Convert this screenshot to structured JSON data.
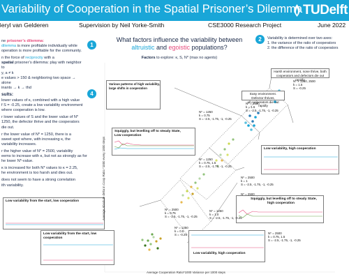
{
  "header": {
    "title": "Variability of Cooperation in the Spatial Prisoner’s Dilemma",
    "logo_text": "TUDelft"
  },
  "authors": {
    "author": "Beryl van Gelderen",
    "supervision": "Supervision by Neil Yorke-Smith",
    "project": "CSE3000 Research Project",
    "date": "June 2022"
  },
  "sections": {
    "s1_num": "1",
    "s2_num": "2",
    "s4_num": "4",
    "intro_l1_a": "ne",
    "intro_l1_b": "prisoner’s dilemma:",
    "intro_l2_a": "dilemma",
    "intro_l2_b": "is more profitable individually while",
    "intro_l3": "operation is more profitable for the community.",
    "intro_l4_a": "n the force of",
    "intro_l4_b": "reciprocity",
    "intro_l4_c": "with a",
    "intro_l5_a": "spatial",
    "intro_l5_b": "prisoner’s dilemma: play with neighbor to",
    "intro_l6_a": "y, a",
    "intro_l6_b": "≠ k",
    "intro_l7": "e values > 150 & neighboring two space → alone",
    "intro_l8": "inants → k → thd",
    "results_title": "sults:",
    "r1": "lower values of κ, combined with a high value",
    "r2": "f S = -0.25, create a low variability environment",
    "r3": "where cooperation is low.",
    "r4": "r lower values of S and the lower value of N*",
    "r5": "1250, the defector thrive and the cooperators",
    "r6": "die out.",
    "r7": "r the lower value of N* = 1250, there is a",
    "r8": "sweet spot where, with increasing κ, the",
    "r9": "variability increases.",
    "r10": "r the higher value of N* = 2500, variability",
    "r11": "eems to increase with κ, but not as strongly as for",
    "r12": "he lower N*-value.",
    "r13": "κ is increased for both N* values to κ = 2.25,",
    "r14": "he environment is too harsh and dies out.",
    "r15": "does not seem to have a strong correlation",
    "r16": "ith variability."
  },
  "question": {
    "line1": "What factors influence the variability between",
    "alt": "altruistic",
    "and": "and",
    "ego": "egoistic",
    "tail": "populations?",
    "factors_label": "Factors",
    "factors_text": "to explore: κ, S, N* (max no agents)"
  },
  "right_box": {
    "l1": "Variability is determined over two axes:",
    "l2": "1. the variance of the ratio of cooperators",
    "l3": "2. the difference of the ratio of cooperators"
  },
  "callouts": {
    "c1_title": "Various patterns of high variability,",
    "c1_sub": "large shifts in cooperation",
    "c2_l1": "Harsh environment, none thrive, both",
    "c2_l2": "cooperators and defectors die out rapidly",
    "c3_l1": "Easy environment. Defector thrives,",
    "c3_l2": "all cooperators die out rapidly",
    "c4_l1": "Squiggly, but levelling off to steady State,",
    "c4_l2": "Low cooperation",
    "c5": "Low variability, high cooperation",
    "c6": "Low variability from the start, low cooperation",
    "c7_l1": "Low variability from the start, low",
    "c7_l2": "cooperation",
    "c8_l1": "Squiggly, but levelling off to steady State,",
    "c8_l2": "high cooperation",
    "c9": "Low variability, high cooperation"
  },
  "params": {
    "p1": [
      "N* = 1250, 2500",
      "k = 1.5",
      "S = -0.25"
    ],
    "p2": [
      "N* = 2500",
      "k = 1.5",
      "S = -2.5, -1.75, -1, -0.25"
    ],
    "p3": [
      "N* = 1250",
      "k = 0.75",
      "S = -2.5, -1.75, -1, -0.25"
    ],
    "p4": [
      "N* = 1250",
      "k = 0.75, 1.5",
      "S = -2.5, -1.75, -1, -0.25"
    ],
    "p5": [
      "N* = 2500",
      "k = 1",
      "S = -2.5, -1.75, -1, -0.25"
    ],
    "p6": [
      "N* = 2500",
      "k = 1.25",
      "S = -2.5, -1.75, -1, -0.25"
    ],
    "p7": [
      "N* = 2500",
      "k = 0.75",
      "S = -2.5, -1.75, -1, -0.25"
    ],
    "p8": [
      "N* = 1250",
      "k = 0.5",
      "S = -0.25"
    ],
    "p9": [
      "N* = 2500",
      "k = 0.75, 1.5",
      "S = -2.5, -1.75, -1, -0.25"
    ],
    "p10": [
      "N* = 1250",
      "k = 1.0",
      "S = -2.5, -1.75, -1, -0.25"
    ]
  },
  "axes": {
    "x_label": "Average Cooperation Ratio*1000 Variance per 1000 steps",
    "y_label": "Average Absolute delta in Coop Ratio *1000 every 1000 steps"
  },
  "colors": {
    "accent": "#19a6d8",
    "pink": "#e64a7c",
    "navy": "#1b2a49"
  }
}
